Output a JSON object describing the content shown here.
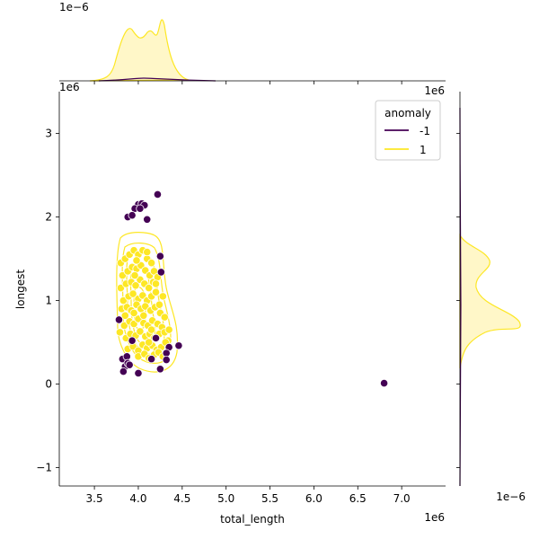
{
  "chart_data": {
    "type": "scatter",
    "kind": "jointplot (scatter + kde contours, marginal kde)",
    "xlabel": "total_length",
    "ylabel": "longest",
    "x_offset_label": "1e6",
    "y_offset_label": "1e6",
    "marg_x_offset_label": "1e−6",
    "marg_y_offset_label": "1e−6",
    "xlim": [
      3.1,
      7.5
    ],
    "ylim": [
      -1.22,
      3.5
    ],
    "x_ticks": [
      "3.5",
      "4.0",
      "4.5",
      "5.0",
      "5.5",
      "6.0",
      "6.5",
      "7.0"
    ],
    "y_ticks": [
      "−1",
      "0",
      "1",
      "2",
      "3"
    ],
    "legend": {
      "title": "anomaly",
      "placement": "top-right",
      "entries": [
        {
          "label": "-1",
          "color": "#440154"
        },
        {
          "label": "1",
          "color": "#fde725"
        }
      ]
    },
    "colors": {
      "anomaly_neg": "#440154",
      "anomaly_pos": "#fde725",
      "kde_fill": "#fff7c8"
    },
    "series": [
      {
        "name": "-1",
        "color": "#440154",
        "points": [
          [
            4.0,
            2.15
          ],
          [
            4.04,
            2.16
          ],
          [
            4.07,
            2.14
          ],
          [
            4.22,
            2.27
          ],
          [
            3.88,
            2.0
          ],
          [
            3.96,
            2.1
          ],
          [
            4.02,
            2.1
          ],
          [
            4.1,
            1.97
          ],
          [
            3.93,
            2.02
          ],
          [
            4.25,
            1.53
          ],
          [
            4.26,
            1.34
          ],
          [
            3.78,
            0.77
          ],
          [
            4.46,
            0.46
          ],
          [
            4.35,
            0.44
          ],
          [
            4.32,
            0.37
          ],
          [
            3.82,
            0.3
          ],
          [
            3.87,
            0.33
          ],
          [
            3.85,
            0.21
          ],
          [
            3.88,
            0.25
          ],
          [
            3.9,
            0.23
          ],
          [
            3.83,
            0.15
          ],
          [
            4.0,
            0.13
          ],
          [
            4.15,
            0.3
          ],
          [
            4.25,
            0.18
          ],
          [
            4.32,
            0.29
          ],
          [
            4.2,
            0.55
          ],
          [
            6.8,
            0.01
          ],
          [
            3.93,
            0.52
          ]
        ]
      },
      {
        "name": "1",
        "color": "#fde725",
        "points": [
          [
            3.8,
            1.45
          ],
          [
            3.85,
            1.5
          ],
          [
            3.9,
            1.55
          ],
          [
            3.95,
            1.6
          ],
          [
            4.0,
            1.55
          ],
          [
            4.05,
            1.6
          ],
          [
            4.1,
            1.5
          ],
          [
            4.15,
            1.45
          ],
          [
            3.82,
            1.3
          ],
          [
            3.88,
            1.35
          ],
          [
            3.93,
            1.4
          ],
          [
            3.98,
            1.38
          ],
          [
            4.03,
            1.42
          ],
          [
            4.08,
            1.36
          ],
          [
            4.13,
            1.3
          ],
          [
            4.18,
            1.35
          ],
          [
            3.8,
            1.15
          ],
          [
            3.86,
            1.2
          ],
          [
            3.92,
            1.22
          ],
          [
            3.97,
            1.18
          ],
          [
            4.02,
            1.25
          ],
          [
            4.07,
            1.2
          ],
          [
            4.12,
            1.15
          ],
          [
            4.17,
            1.22
          ],
          [
            4.22,
            1.28
          ],
          [
            3.83,
            1.0
          ],
          [
            3.89,
            1.05
          ],
          [
            3.94,
            1.08
          ],
          [
            4.0,
            1.02
          ],
          [
            4.05,
            1.06
          ],
          [
            4.1,
            1.0
          ],
          [
            4.15,
            1.05
          ],
          [
            4.2,
            1.1
          ],
          [
            3.81,
            0.9
          ],
          [
            3.87,
            0.92
          ],
          [
            3.92,
            0.88
          ],
          [
            3.98,
            0.95
          ],
          [
            4.03,
            0.9
          ],
          [
            4.08,
            0.93
          ],
          [
            4.14,
            0.88
          ],
          [
            4.19,
            0.92
          ],
          [
            4.24,
            0.95
          ],
          [
            3.79,
            0.62
          ],
          [
            3.84,
            0.7
          ],
          [
            3.9,
            0.75
          ],
          [
            3.95,
            0.72
          ],
          [
            4.0,
            0.78
          ],
          [
            4.06,
            0.73
          ],
          [
            4.11,
            0.7
          ],
          [
            4.16,
            0.76
          ],
          [
            4.22,
            0.72
          ],
          [
            4.27,
            0.68
          ],
          [
            3.86,
            0.55
          ],
          [
            3.91,
            0.6
          ],
          [
            3.97,
            0.58
          ],
          [
            4.02,
            0.63
          ],
          [
            4.08,
            0.57
          ],
          [
            4.13,
            0.6
          ],
          [
            4.18,
            0.55
          ],
          [
            4.24,
            0.6
          ],
          [
            4.3,
            0.62
          ],
          [
            4.34,
            0.52
          ],
          [
            3.88,
            0.42
          ],
          [
            3.94,
            0.45
          ],
          [
            4.0,
            0.4
          ],
          [
            4.05,
            0.47
          ],
          [
            4.1,
            0.43
          ],
          [
            4.16,
            0.46
          ],
          [
            4.21,
            0.41
          ],
          [
            4.26,
            0.44
          ],
          [
            4.31,
            0.5
          ],
          [
            4.0,
            0.33
          ],
          [
            4.07,
            0.36
          ],
          [
            4.12,
            0.31
          ],
          [
            4.18,
            0.35
          ],
          [
            4.23,
            0.38
          ],
          [
            4.28,
            0.33
          ],
          [
            3.95,
            0.85
          ],
          [
            4.25,
            0.85
          ],
          [
            4.3,
            0.8
          ],
          [
            4.1,
            1.58
          ],
          [
            3.98,
            1.48
          ],
          [
            4.2,
            1.2
          ],
          [
            4.28,
            1.05
          ],
          [
            3.96,
            1.3
          ],
          [
            4.06,
            0.82
          ],
          [
            4.15,
            0.65
          ],
          [
            3.85,
            0.82
          ],
          [
            4.35,
            0.65
          ],
          [
            4.12,
            0.5
          ]
        ]
      }
    ]
  }
}
